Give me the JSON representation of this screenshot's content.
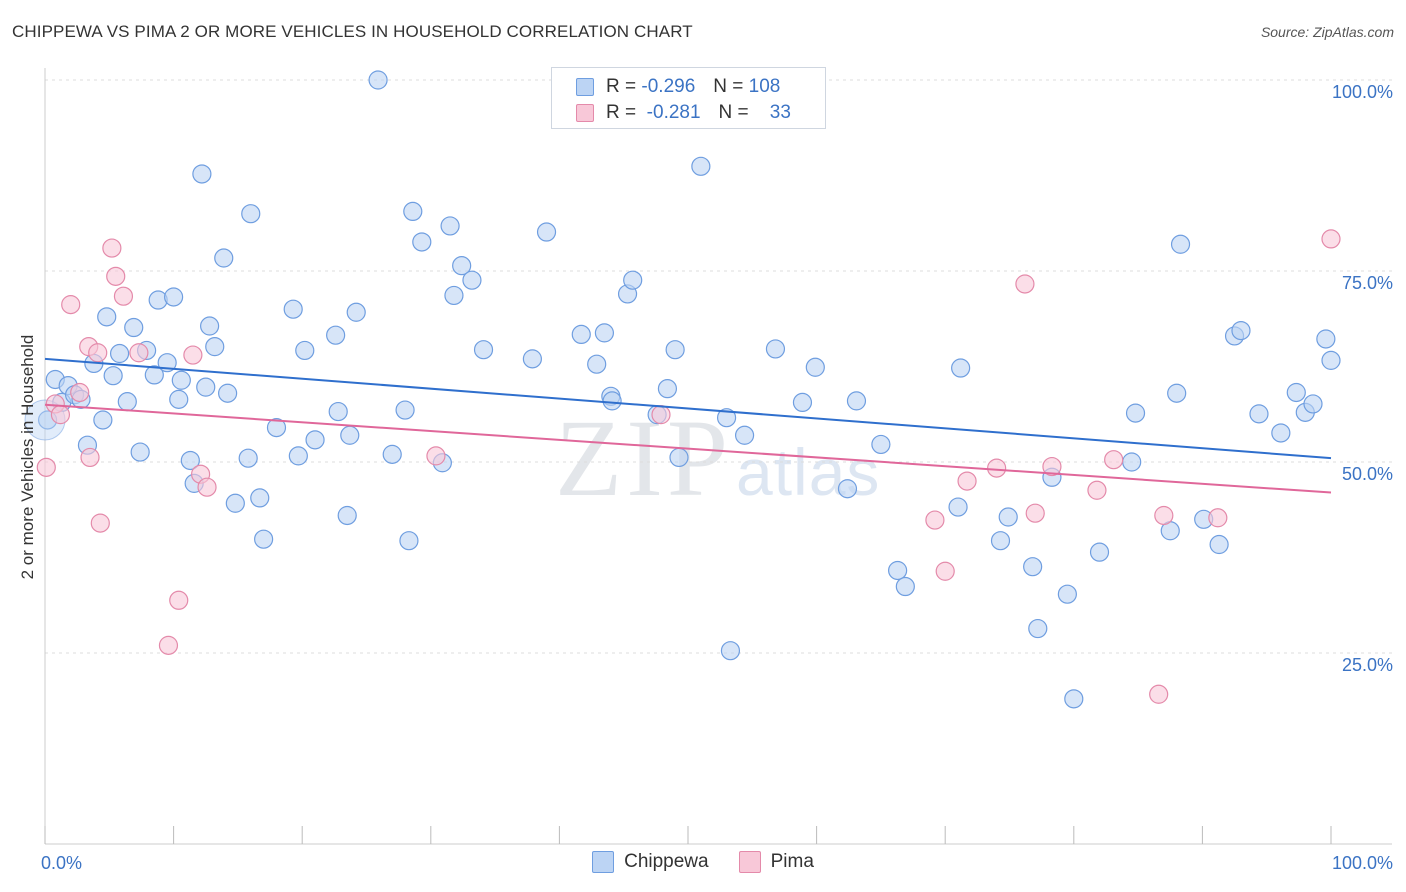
{
  "title": "CHIPPEWA VS PIMA 2 OR MORE VEHICLES IN HOUSEHOLD CORRELATION CHART",
  "source": "Source: ZipAtlas.com",
  "watermark": {
    "zip": "ZIP",
    "atlas": "atlas"
  },
  "legend": [
    {
      "name": "Chippewa",
      "r_label": "R =",
      "r": "-0.296",
      "n_label": "N =",
      "n": "108",
      "fill": "#bcd4f4",
      "stroke": "#6f9ee0"
    },
    {
      "name": "Pima",
      "r_label": "R =",
      "r": "-0.281",
      "n_label": "N =",
      "n": "33",
      "fill": "#f8c8d8",
      "stroke": "#e48aaa"
    }
  ],
  "colors": {
    "blue_line": "#2f6fcd",
    "pink_line": "#e0679a",
    "tick_text": "#3b73c4",
    "grid": "#dcdcdc"
  },
  "chart_data": {
    "type": "scatter",
    "xlabel": "",
    "ylabel": "2 or more Vehicles in Household",
    "xlim": [
      0,
      100
    ],
    "ylim": [
      0,
      100
    ],
    "x_tick_labels": [
      {
        "value": 0,
        "label": "0.0%"
      },
      {
        "value": 100,
        "label": "100.0%"
      }
    ],
    "y_tick_labels": [
      {
        "value": 25,
        "label": "25.0%"
      },
      {
        "value": 50,
        "label": "50.0%"
      },
      {
        "value": 75,
        "label": "75.0%"
      },
      {
        "value": 100,
        "label": "100.0%"
      }
    ],
    "grid": "horizontal dashed",
    "legend_position": "top-center",
    "series": [
      {
        "name": "Chippewa",
        "trend": {
          "x": [
            0,
            100
          ],
          "y": [
            63.5,
            50.5
          ]
        },
        "points": [
          [
            0.2,
            55.5
          ],
          [
            0.8,
            60.8
          ],
          [
            1.3,
            57.8
          ],
          [
            1.8,
            60.0
          ],
          [
            2.3,
            58.8
          ],
          [
            2.8,
            58.2
          ],
          [
            3.3,
            52.2
          ],
          [
            3.8,
            62.9
          ],
          [
            4.5,
            55.5
          ],
          [
            4.8,
            69.0
          ],
          [
            5.3,
            61.3
          ],
          [
            5.8,
            64.2
          ],
          [
            6.4,
            57.9
          ],
          [
            6.9,
            67.6
          ],
          [
            7.4,
            51.3
          ],
          [
            7.9,
            64.6
          ],
          [
            8.5,
            61.4
          ],
          [
            8.8,
            71.2
          ],
          [
            9.5,
            63.0
          ],
          [
            10.0,
            71.6
          ],
          [
            10.4,
            58.2
          ],
          [
            10.6,
            60.7
          ],
          [
            11.3,
            50.2
          ],
          [
            11.6,
            47.2
          ],
          [
            12.2,
            87.7
          ],
          [
            12.5,
            59.8
          ],
          [
            12.8,
            67.8
          ],
          [
            13.2,
            65.1
          ],
          [
            13.9,
            76.7
          ],
          [
            14.2,
            59.0
          ],
          [
            14.8,
            44.6
          ],
          [
            15.8,
            50.5
          ],
          [
            16.0,
            82.5
          ],
          [
            16.7,
            45.3
          ],
          [
            17.0,
            39.9
          ],
          [
            18.0,
            54.5
          ],
          [
            19.3,
            70.0
          ],
          [
            19.7,
            50.8
          ],
          [
            20.2,
            64.6
          ],
          [
            21.0,
            52.9
          ],
          [
            22.6,
            66.6
          ],
          [
            22.8,
            56.6
          ],
          [
            23.5,
            43.0
          ],
          [
            23.7,
            53.5
          ],
          [
            24.2,
            69.6
          ],
          [
            25.9,
            100.0
          ],
          [
            27.0,
            51.0
          ],
          [
            28.0,
            56.8
          ],
          [
            28.3,
            39.7
          ],
          [
            28.6,
            82.8
          ],
          [
            29.3,
            78.8
          ],
          [
            30.9,
            49.9
          ],
          [
            31.5,
            80.9
          ],
          [
            31.8,
            71.8
          ],
          [
            32.4,
            75.7
          ],
          [
            33.2,
            73.8
          ],
          [
            34.1,
            64.7
          ],
          [
            37.9,
            63.5
          ],
          [
            39.0,
            80.1
          ],
          [
            41.7,
            66.7
          ],
          [
            42.9,
            62.8
          ],
          [
            43.5,
            66.9
          ],
          [
            44.0,
            58.6
          ],
          [
            44.1,
            58.0
          ],
          [
            45.3,
            72.0
          ],
          [
            45.7,
            73.8
          ],
          [
            47.6,
            56.2
          ],
          [
            48.4,
            59.6
          ],
          [
            49.0,
            64.7
          ],
          [
            49.3,
            50.6
          ],
          [
            51.0,
            88.7
          ],
          [
            53.0,
            55.8
          ],
          [
            53.3,
            25.3
          ],
          [
            54.4,
            53.5
          ],
          [
            56.8,
            64.8
          ],
          [
            58.9,
            57.8
          ],
          [
            59.9,
            62.4
          ],
          [
            63.1,
            58.0
          ],
          [
            62.4,
            46.5
          ],
          [
            65.0,
            52.3
          ],
          [
            66.3,
            35.8
          ],
          [
            66.9,
            33.7
          ],
          [
            71.0,
            44.1
          ],
          [
            71.2,
            62.3
          ],
          [
            74.3,
            39.7
          ],
          [
            74.9,
            42.8
          ],
          [
            76.8,
            36.3
          ],
          [
            77.2,
            28.2
          ],
          [
            78.3,
            48.0
          ],
          [
            79.5,
            32.7
          ],
          [
            80.0,
            19.0
          ],
          [
            82.0,
            38.2
          ],
          [
            84.5,
            50.0
          ],
          [
            84.8,
            56.4
          ],
          [
            87.5,
            41.0
          ],
          [
            88.0,
            59.0
          ],
          [
            88.3,
            78.5
          ],
          [
            90.1,
            42.5
          ],
          [
            91.3,
            39.2
          ],
          [
            92.5,
            66.5
          ],
          [
            93.0,
            67.2
          ],
          [
            94.4,
            56.3
          ],
          [
            96.1,
            53.8
          ],
          [
            97.3,
            59.1
          ],
          [
            98.0,
            56.5
          ],
          [
            98.6,
            57.6
          ],
          [
            99.6,
            66.1
          ],
          [
            100.0,
            63.3
          ]
        ]
      },
      {
        "name": "Pima",
        "trend": {
          "x": [
            0,
            100
          ],
          "y": [
            57.5,
            46.0
          ]
        },
        "points": [
          [
            0.1,
            49.3
          ],
          [
            0.8,
            57.6
          ],
          [
            1.2,
            56.2
          ],
          [
            2.0,
            70.6
          ],
          [
            2.7,
            59.1
          ],
          [
            3.4,
            65.1
          ],
          [
            3.5,
            50.6
          ],
          [
            4.1,
            64.3
          ],
          [
            4.3,
            42.0
          ],
          [
            5.2,
            78.0
          ],
          [
            5.5,
            74.3
          ],
          [
            6.1,
            71.7
          ],
          [
            7.3,
            64.3
          ],
          [
            9.6,
            26.0
          ],
          [
            10.4,
            31.9
          ],
          [
            11.5,
            64.0
          ],
          [
            12.1,
            48.4
          ],
          [
            12.6,
            46.7
          ],
          [
            30.4,
            50.8
          ],
          [
            47.9,
            56.2
          ],
          [
            69.2,
            42.4
          ],
          [
            70.0,
            35.7
          ],
          [
            71.7,
            47.5
          ],
          [
            74.0,
            49.2
          ],
          [
            76.2,
            73.3
          ],
          [
            77.0,
            43.3
          ],
          [
            78.3,
            49.4
          ],
          [
            81.8,
            46.3
          ],
          [
            83.1,
            50.3
          ],
          [
            86.6,
            19.6
          ],
          [
            87.0,
            43.0
          ],
          [
            91.2,
            42.7
          ],
          [
            100.0,
            79.2
          ]
        ]
      }
    ]
  }
}
